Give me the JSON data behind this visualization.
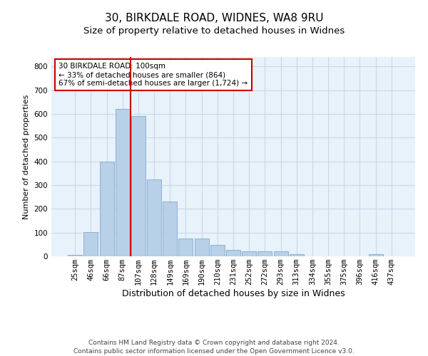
{
  "title1": "30, BIRKDALE ROAD, WIDNES, WA8 9RU",
  "title2": "Size of property relative to detached houses in Widnes",
  "xlabel": "Distribution of detached houses by size in Widnes",
  "ylabel": "Number of detached properties",
  "footer": "Contains HM Land Registry data © Crown copyright and database right 2024.\nContains public sector information licensed under the Open Government Licence v3.0.",
  "annotation_title": "30 BIRKDALE ROAD: 100sqm",
  "annotation_line1": "← 33% of detached houses are smaller (864)",
  "annotation_line2": "67% of semi-detached houses are larger (1,724) →",
  "bar_labels": [
    "25sqm",
    "46sqm",
    "66sqm",
    "87sqm",
    "107sqm",
    "128sqm",
    "149sqm",
    "169sqm",
    "190sqm",
    "210sqm",
    "231sqm",
    "252sqm",
    "272sqm",
    "293sqm",
    "313sqm",
    "334sqm",
    "355sqm",
    "375sqm",
    "396sqm",
    "416sqm",
    "437sqm"
  ],
  "bar_values": [
    5,
    102,
    400,
    620,
    592,
    325,
    230,
    75,
    75,
    47,
    28,
    20,
    20,
    20,
    10,
    0,
    0,
    0,
    0,
    10,
    0
  ],
  "bar_color": "#b8d0e8",
  "bar_edge_color": "#8ab0d0",
  "grid_color": "#c8d8e8",
  "background_color": "#e8f2fb",
  "vline_color": "#cc0000",
  "vline_pos": 3.5,
  "ylim": [
    0,
    840
  ],
  "yticks": [
    0,
    100,
    200,
    300,
    400,
    500,
    600,
    700,
    800
  ],
  "annotation_box_color": "#cc0000",
  "title1_fontsize": 11,
  "title2_fontsize": 9.5,
  "xlabel_fontsize": 9,
  "ylabel_fontsize": 8,
  "tick_fontsize": 7.5,
  "footer_fontsize": 6.5,
  "ann_fontsize": 7.5
}
